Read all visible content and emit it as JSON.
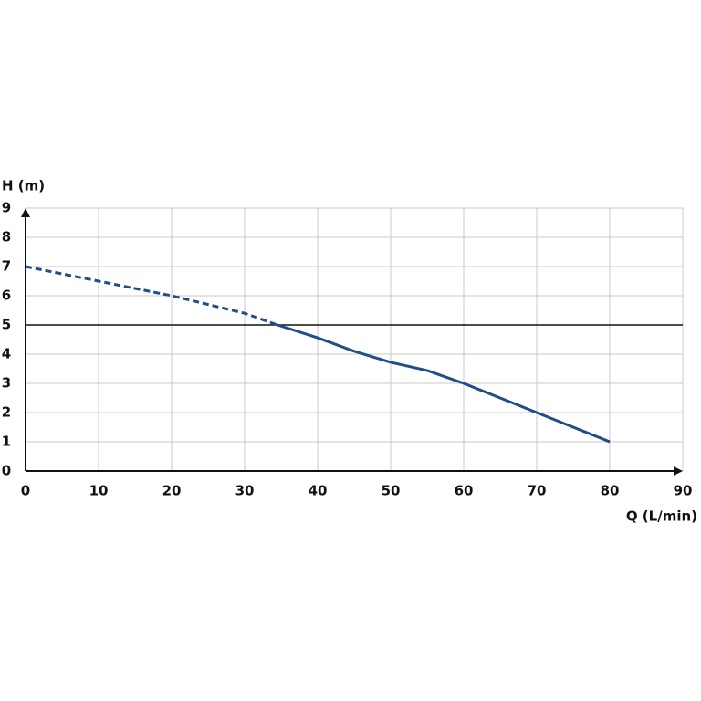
{
  "chart_data": {
    "type": "line",
    "xlabel": "Q (L/min)",
    "ylabel": "H (m)",
    "series": [
      {
        "color": "#1f4e89",
        "dash": true,
        "x": [
          0,
          10,
          20,
          30,
          34.5
        ],
        "values": [
          7,
          6.5,
          6,
          5.4,
          5
        ]
      },
      {
        "color": "#1f4e89",
        "dash": false,
        "x": [
          34.5,
          40,
          45,
          50,
          55,
          60,
          65,
          70,
          75,
          80
        ],
        "values": [
          5,
          4.56,
          4.1,
          3.72,
          3.44,
          3,
          2.5,
          2,
          1.5,
          1
        ]
      }
    ],
    "hline": 5,
    "hline_color": "#111111",
    "xlim": [
      0,
      90
    ],
    "ylim": [
      0,
      9
    ],
    "xticks": [
      0,
      10,
      20,
      30,
      40,
      50,
      60,
      70,
      80,
      90
    ],
    "yticks": [
      0,
      1,
      2,
      3,
      4,
      5,
      6,
      7,
      8,
      9
    ],
    "grid": true
  }
}
